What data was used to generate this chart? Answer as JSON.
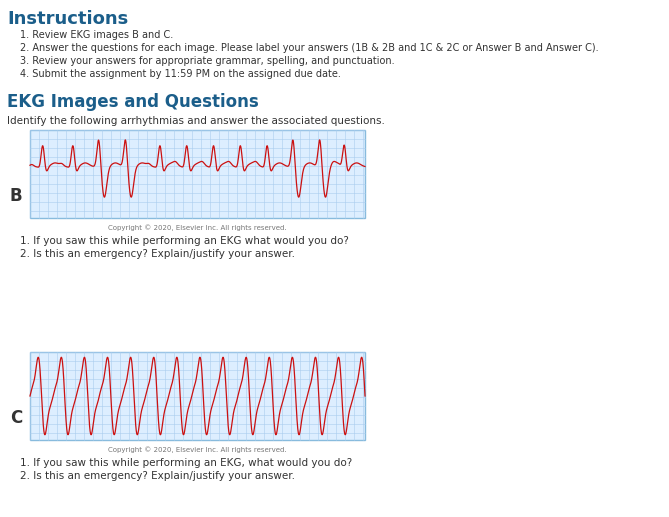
{
  "title_instructions": "Instructions",
  "title_ekg": "EKG Images and Questions",
  "instructions": [
    "Review EKG images B and C.",
    "Answer the questions for each image. Please label your answers (1B & 2B and 1C & 2C or Answer B and Answer C).",
    "Review your answers for appropriate grammar, spelling, and punctuation.",
    "Submit the assignment by 11:59 PM on the assigned due date."
  ],
  "identify_text": "Identify the following arrhythmias and answer the associated questions.",
  "copyright_text": "Copyright © 2020, Elsevier Inc. All rights reserved.",
  "label_B": "B",
  "label_C": "C",
  "questions_B": [
    "1. If you saw this while performing an EKG what would you do?",
    "2. Is this an emergency? Explain/justify your answer."
  ],
  "questions_C": [
    "1. If you saw this while performing an EKG, what would you do?",
    "2. Is this an emergency? Explain/justify your answer."
  ],
  "bg_color": "#ffffff",
  "title_color": "#1b5e8a",
  "text_color": "#333333",
  "ekg_bg": "#ddeeff",
  "ekg_grid_color": "#aaccee",
  "ekg_line_color": "#cc1111",
  "ekg_border_color": "#88bbdd"
}
